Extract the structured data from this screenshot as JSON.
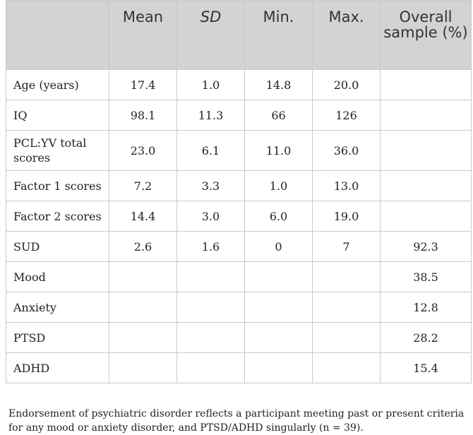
{
  "table": {
    "headers": [
      "",
      "Mean",
      "SD",
      "Min.",
      "Max.",
      "Overall sample (%)"
    ],
    "rows": [
      {
        "label": "Age (years)",
        "mean": "17.4",
        "sd": "1.0",
        "min": "14.8",
        "max": "20.0",
        "overall": ""
      },
      {
        "label": "IQ",
        "mean": "98.1",
        "sd": "11.3",
        "min": "66",
        "max": "126",
        "overall": ""
      },
      {
        "label": "PCL:YV total scores",
        "mean": "23.0",
        "sd": "6.1",
        "min": "11.0",
        "max": "36.0",
        "overall": ""
      },
      {
        "label": "Factor 1 scores",
        "mean": "7.2",
        "sd": "3.3",
        "min": "1.0",
        "max": "13.0",
        "overall": ""
      },
      {
        "label": "Factor 2 scores",
        "mean": "14.4",
        "sd": "3.0",
        "min": "6.0",
        "max": "19.0",
        "overall": ""
      },
      {
        "label": "SUD",
        "mean": "2.6",
        "sd": "1.6",
        "min": "0",
        "max": "7",
        "overall": "92.3"
      },
      {
        "label": "Mood",
        "mean": "",
        "sd": "",
        "min": "",
        "max": "",
        "overall": "38.5"
      },
      {
        "label": "Anxiety",
        "mean": "",
        "sd": "",
        "min": "",
        "max": "",
        "overall": "12.8"
      },
      {
        "label": "PTSD",
        "mean": "",
        "sd": "",
        "min": "",
        "max": "",
        "overall": "28.2"
      },
      {
        "label": "ADHD",
        "mean": "",
        "sd": "",
        "min": "",
        "max": "",
        "overall": "15.4"
      }
    ]
  },
  "footnote": "Endorsement of psychiatric disorder reflects a participant meeting past or present criteria for any mood or anxiety disorder, and PTSD/ADHD singularly (n = 39)."
}
